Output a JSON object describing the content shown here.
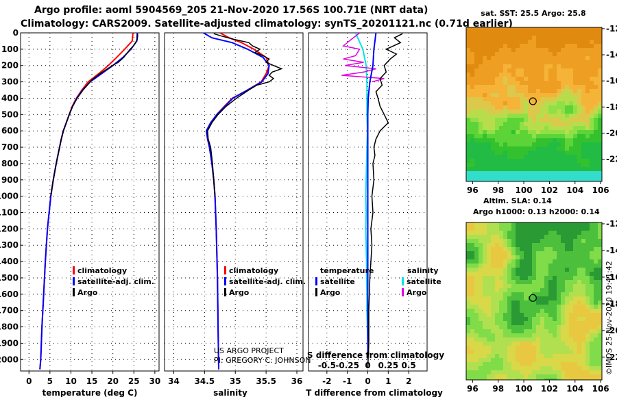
{
  "title": {
    "line1": "Argo profile: aoml 5904569_205 21-Nov-2020 17.56S 100.71E (NRT data)",
    "line2": "Climatology: CARS2009. Satellite-adjusted climatology: synTS_20201121.nc (0.71d earlier)"
  },
  "colors": {
    "climatology": "#ff0000",
    "satellite": "#0000ff",
    "argo": "#000000",
    "temp_diff_sat": "#0000ff",
    "temp_diff_argo": "#000000",
    "sal_diff_sat": "#00e5e5",
    "sal_diff_argo": "#e000e0"
  },
  "depth_axis": {
    "ticks": [
      0,
      100,
      200,
      300,
      400,
      500,
      600,
      700,
      800,
      900,
      1000,
      1100,
      1200,
      1300,
      1400,
      1500,
      1600,
      1700,
      1800,
      1900,
      2000
    ],
    "ylim": [
      2070,
      0
    ]
  },
  "attribution": {
    "line1": "US ARGO PROJECT",
    "line2": "PI: GREGORY C. JOHNSON"
  },
  "timestamp": "©IMOS 25-Nov-2020 19:41:42",
  "chart_data": [
    {
      "type": "line",
      "name": "temperature",
      "xlabel": "temperature (deg C)",
      "ylabel": "depth",
      "xlim": [
        -2,
        31
      ],
      "xticks": [
        0,
        5,
        10,
        15,
        20,
        25,
        30
      ],
      "legend": [
        "climatology",
        "satellite-adj. clim.",
        "Argo"
      ],
      "legend_position": "lower-right",
      "series": [
        {
          "name": "climatology",
          "color": "#ff0000",
          "depth": [
            0,
            50,
            100,
            150,
            200,
            250,
            300,
            350,
            400,
            450,
            500,
            550,
            600,
            650,
            700,
            800,
            900,
            1000,
            1200,
            1400,
            1600,
            1800,
            2000,
            2060
          ],
          "values": [
            24.8,
            24.6,
            22.8,
            20.9,
            18.9,
            16.6,
            14.1,
            12.6,
            11.3,
            10.3,
            9.6,
            8.9,
            8.2,
            7.7,
            7.3,
            6.5,
            5.8,
            5.2,
            4.4,
            3.9,
            3.5,
            3.1,
            2.8,
            2.6
          ]
        },
        {
          "name": "satellite-adj. clim.",
          "color": "#0000ff",
          "depth": [
            0,
            50,
            100,
            150,
            200,
            250,
            300,
            350,
            400,
            450,
            500,
            550,
            600,
            650,
            700,
            800,
            900,
            1000,
            1200,
            1400,
            1600,
            1800,
            2000,
            2060
          ],
          "values": [
            25.8,
            25.7,
            24.3,
            22.4,
            20.0,
            17.3,
            14.6,
            12.8,
            11.4,
            10.4,
            9.6,
            8.9,
            8.2,
            7.7,
            7.3,
            6.5,
            5.8,
            5.2,
            4.4,
            3.9,
            3.5,
            3.1,
            2.8,
            2.6
          ]
        },
        {
          "name": "Argo",
          "color": "#000000",
          "depth": [
            5,
            20,
            40,
            60,
            80,
            100,
            120,
            150,
            180,
            200,
            230,
            260,
            290,
            320,
            350,
            400,
            450,
            500,
            550,
            600,
            650,
            700,
            800,
            900,
            1000
          ],
          "values": [
            25.9,
            25.9,
            25.8,
            25.4,
            24.9,
            24.1,
            23.5,
            22.6,
            21.3,
            19.9,
            18.1,
            16.4,
            14.9,
            13.9,
            12.9,
            11.5,
            10.4,
            9.6,
            8.9,
            8.2,
            7.7,
            7.3,
            6.5,
            5.8,
            5.2
          ]
        }
      ]
    },
    {
      "type": "line",
      "name": "salinity",
      "xlabel": "salinity",
      "ylabel": "depth",
      "xlim": [
        33.85,
        36.1
      ],
      "xticks": [
        34,
        34.5,
        35,
        35.5,
        36
      ],
      "xtick_labels": [
        "34",
        "34.5",
        "35",
        "35.5",
        "36"
      ],
      "legend": [
        "climatology",
        "satellite-adj. clim.",
        "Argo"
      ],
      "legend_position": "lower-right",
      "series": [
        {
          "name": "climatology",
          "color": "#ff0000",
          "depth": [
            0,
            30,
            60,
            100,
            150,
            200,
            250,
            300,
            350,
            400,
            450,
            500,
            550,
            600,
            650,
            700,
            800,
            900,
            1000,
            1200,
            1500,
            1800,
            2060
          ],
          "values": [
            34.75,
            34.9,
            35.1,
            35.3,
            35.5,
            35.55,
            35.5,
            35.42,
            35.2,
            34.95,
            34.82,
            34.7,
            34.6,
            34.53,
            34.55,
            34.58,
            34.62,
            34.65,
            34.67,
            34.69,
            34.71,
            34.72,
            34.73
          ]
        },
        {
          "name": "satellite-adj. clim.",
          "color": "#0000ff",
          "depth": [
            0,
            30,
            60,
            100,
            150,
            200,
            250,
            300,
            350,
            400,
            450,
            500,
            550,
            600,
            650,
            700,
            800,
            900,
            1000,
            1200,
            1500,
            1800,
            2060
          ],
          "values": [
            34.48,
            34.62,
            34.95,
            35.2,
            35.45,
            35.55,
            35.53,
            35.43,
            35.2,
            34.96,
            34.83,
            34.7,
            34.6,
            34.53,
            34.55,
            34.58,
            34.62,
            34.65,
            34.67,
            34.69,
            34.71,
            34.72,
            34.73
          ]
        },
        {
          "name": "Argo",
          "color": "#000000",
          "depth": [
            5,
            20,
            40,
            60,
            80,
            100,
            120,
            140,
            160,
            180,
            200,
            220,
            240,
            260,
            280,
            300,
            320,
            350,
            400,
            450,
            500,
            550,
            600,
            650,
            700,
            800,
            900,
            1000
          ],
          "values": [
            34.65,
            34.78,
            34.98,
            35.22,
            35.28,
            35.4,
            35.32,
            35.45,
            35.55,
            35.5,
            35.62,
            35.75,
            35.6,
            35.55,
            35.62,
            35.55,
            35.35,
            35.22,
            35.02,
            34.85,
            34.72,
            34.62,
            34.55,
            34.56,
            34.6,
            34.63,
            34.65,
            34.67
          ]
        }
      ]
    },
    {
      "type": "line",
      "name": "difference from climatology",
      "xlabel": "T difference from climatology",
      "xlim": [
        -2.9,
        2.9
      ],
      "xticks": [
        -2,
        -1,
        0,
        1,
        2
      ],
      "top_axis_label": "S difference from climatology",
      "top_xticks": [
        -0.5,
        -0.25,
        0,
        0.25,
        0.5
      ],
      "top_xtick_labels": [
        "-0.5",
        "-0.25",
        "0",
        "0.25",
        "0.5"
      ],
      "legend_temperature_title": "temperature",
      "legend_salinity_title": "salinity",
      "legend": [
        "satellite",
        "Argo",
        "satellite",
        "Argo"
      ],
      "legend_position": "lower-center",
      "series": [
        {
          "name": "T satellite",
          "color": "#0000ff",
          "depth": [
            0,
            100,
            200,
            300,
            400,
            500,
            600,
            800,
            1000,
            1500,
            2000
          ],
          "values": [
            0.4,
            0.3,
            0.25,
            0.1,
            0.02,
            0.0,
            0.0,
            0.0,
            0.0,
            0.0,
            0.0
          ]
        },
        {
          "name": "T Argo",
          "color": "#000000",
          "depth": [
            5,
            30,
            60,
            100,
            130,
            160,
            200,
            240,
            280,
            320,
            360,
            400,
            450,
            500,
            550,
            600,
            650,
            700,
            750,
            800,
            900,
            1000,
            1100,
            1200,
            1300,
            1500,
            1700,
            1900,
            2050
          ],
          "values": [
            1.7,
            1.3,
            1.6,
            0.9,
            1.4,
            1.1,
            0.8,
            0.9,
            0.6,
            0.7,
            0.4,
            0.5,
            0.6,
            0.8,
            1.0,
            0.6,
            0.4,
            0.3,
            0.35,
            0.25,
            0.3,
            0.2,
            0.25,
            0.15,
            0.2,
            0.1,
            0.05,
            0.05,
            0.0
          ]
        },
        {
          "name": "S satellite",
          "color": "#00e5e5",
          "depth": [
            0,
            100,
            200,
            300,
            400,
            500,
            600,
            700,
            800,
            900,
            1000,
            1100,
            1200,
            1300,
            1400,
            1500,
            1600,
            1700,
            1800,
            1900,
            2000
          ],
          "values": [
            -0.15,
            -0.06,
            -0.02,
            -0.01,
            -0.01,
            -0.01,
            -0.005,
            -0.01,
            -0.015,
            -0.02,
            -0.025,
            -0.02,
            -0.025,
            -0.02,
            -0.015,
            -0.015,
            -0.01,
            -0.01,
            -0.005,
            0,
            0
          ]
        },
        {
          "name": "S Argo",
          "color": "#e000e0",
          "depth": [
            0,
            40,
            80,
            100,
            140,
            160,
            180,
            200,
            220,
            240,
            260,
            280,
            300
          ],
          "values": [
            -0.1,
            -0.2,
            -0.3,
            -0.1,
            -0.15,
            -0.3,
            -0.05,
            -0.28,
            0.1,
            -0.05,
            -0.32,
            0.2,
            0.05
          ]
        }
      ]
    },
    {
      "type": "heatmap",
      "name": "satellite SST map",
      "title": "sat. SST: 25.5 Argo: 25.8",
      "xlim": [
        95.5,
        106.1
      ],
      "ylim": [
        -23.7,
        -11.9
      ],
      "xticks": [
        96,
        98,
        100,
        102,
        104,
        106
      ],
      "yticks": [
        -12,
        -14,
        -16,
        -18,
        -20,
        -22
      ],
      "argo_position": {
        "lon": 100.71,
        "lat": -17.56
      }
    },
    {
      "type": "heatmap",
      "name": "altimetry SLA map",
      "title_line1": "Altim. SLA: 0.14",
      "title_line2": "Argo h1000: 0.13 h2000: 0.14",
      "xlim": [
        95.5,
        106.1
      ],
      "ylim": [
        -23.7,
        -11.9
      ],
      "xticks": [
        96,
        98,
        100,
        102,
        104,
        106
      ],
      "yticks": [
        -12,
        -14,
        -16,
        -18,
        -20,
        -22
      ],
      "argo_position": {
        "lon": 100.71,
        "lat": -17.56
      }
    }
  ]
}
